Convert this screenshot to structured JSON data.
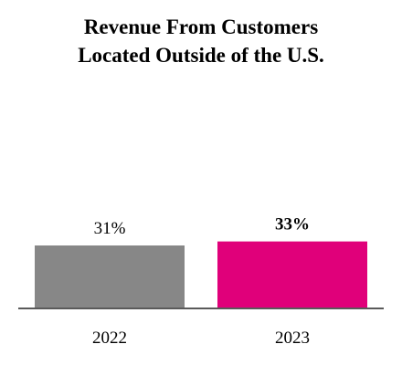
{
  "chart_data": {
    "type": "bar",
    "title_lines": [
      "Revenue From Customers",
      "Located Outside of the U.S."
    ],
    "categories": [
      "2022",
      "2023"
    ],
    "values": [
      31,
      33
    ],
    "value_labels": [
      "31%",
      "33%"
    ],
    "emphasis": [
      false,
      true
    ],
    "colors": [
      "#878787",
      "#e0007a"
    ],
    "axis_color": "#5a5a5a",
    "ylim": [
      0,
      100
    ],
    "grid": false,
    "legend": "none"
  }
}
